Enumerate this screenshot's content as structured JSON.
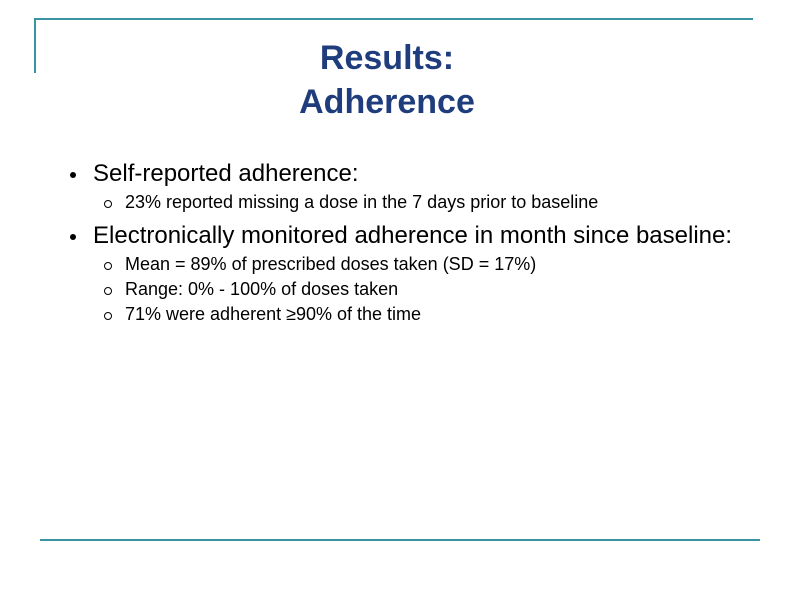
{
  "slide": {
    "title": [
      "Results:",
      "Adherence"
    ],
    "bullets": [
      {
        "text": "Self-reported adherence:",
        "items": [
          "23% reported missing a dose in the 7 days prior to baseline"
        ]
      },
      {
        "text": "Electronically monitored adherence in month since baseline:",
        "items": [
          "Mean = 89% of prescribed doses taken (SD = 17%)",
          "Range: 0% - 100% of doses taken",
          "71% were adherent ≥90% of the time"
        ]
      }
    ]
  }
}
